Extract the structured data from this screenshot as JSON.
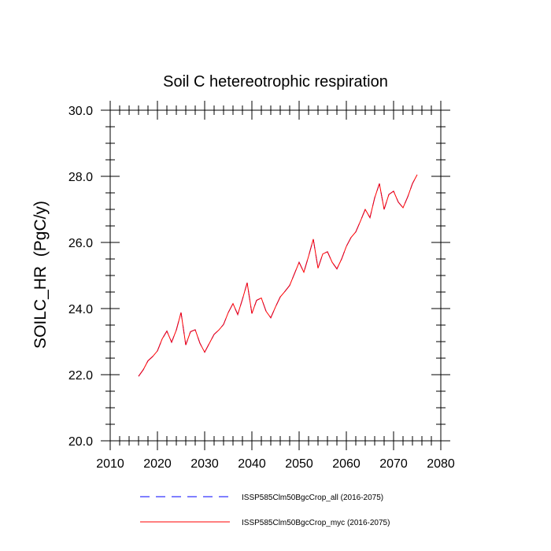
{
  "chart_data": {
    "type": "line",
    "title": "Soil C hetereotrophic respiration",
    "xlabel": "",
    "ylabel": "SOILC_HR  (PgC/y)",
    "xlim": [
      2010,
      2080
    ],
    "ylim": [
      20.0,
      30.0
    ],
    "xticks": [
      2010,
      2020,
      2030,
      2040,
      2050,
      2060,
      2070,
      2080
    ],
    "yticks": [
      20.0,
      22.0,
      24.0,
      26.0,
      28.0,
      30.0
    ],
    "ytick_labels": [
      "20.0",
      "22.0",
      "24.0",
      "26.0",
      "28.0",
      "30.0"
    ],
    "grid": false,
    "legend": "bottom",
    "x": [
      2016,
      2017,
      2018,
      2019,
      2020,
      2021,
      2022,
      2023,
      2024,
      2025,
      2026,
      2027,
      2028,
      2029,
      2030,
      2031,
      2032,
      2033,
      2034,
      2035,
      2036,
      2037,
      2038,
      2039,
      2040,
      2041,
      2042,
      2043,
      2044,
      2045,
      2046,
      2047,
      2048,
      2049,
      2050,
      2051,
      2052,
      2053,
      2054,
      2055,
      2056,
      2057,
      2058,
      2059,
      2060,
      2061,
      2062,
      2063,
      2064,
      2065,
      2066,
      2067,
      2068,
      2069,
      2070,
      2071,
      2072,
      2073,
      2074,
      2075
    ],
    "series": [
      {
        "name": "ISSP585Clm50BgcCrop_all (2016-2075)",
        "color": "#0000ff",
        "style": "dashed",
        "values": [
          21.95,
          22.15,
          22.42,
          22.55,
          22.72,
          23.08,
          23.32,
          22.98,
          23.35,
          23.88,
          22.9,
          23.3,
          23.36,
          22.95,
          22.68,
          22.95,
          23.22,
          23.35,
          23.52,
          23.88,
          24.15,
          23.82,
          24.28,
          24.78,
          23.85,
          24.25,
          24.32,
          23.92,
          23.72,
          24.05,
          24.35,
          24.52,
          24.7,
          25.05,
          25.4,
          25.1,
          25.58,
          26.1,
          25.22,
          25.65,
          25.72,
          25.4,
          25.2,
          25.5,
          25.88,
          26.15,
          26.32,
          26.65,
          27.0,
          26.75,
          27.35,
          27.78,
          27.0,
          27.45,
          27.55,
          27.22,
          27.05,
          27.38,
          27.78,
          28.05
        ]
      },
      {
        "name": "ISSP585Clm50BgcCrop_myc (2016-2075)",
        "color": "#ff0000",
        "style": "solid",
        "values": [
          21.95,
          22.15,
          22.42,
          22.55,
          22.72,
          23.08,
          23.32,
          22.98,
          23.35,
          23.88,
          22.9,
          23.3,
          23.36,
          22.95,
          22.68,
          22.95,
          23.22,
          23.35,
          23.52,
          23.88,
          24.15,
          23.82,
          24.28,
          24.78,
          23.85,
          24.25,
          24.32,
          23.92,
          23.72,
          24.05,
          24.35,
          24.52,
          24.7,
          25.05,
          25.4,
          25.1,
          25.58,
          26.1,
          25.22,
          25.65,
          25.72,
          25.4,
          25.2,
          25.5,
          25.88,
          26.15,
          26.32,
          26.65,
          27.0,
          26.75,
          27.35,
          27.78,
          27.0,
          27.45,
          27.55,
          27.22,
          27.05,
          27.38,
          27.78,
          28.05
        ]
      }
    ]
  }
}
